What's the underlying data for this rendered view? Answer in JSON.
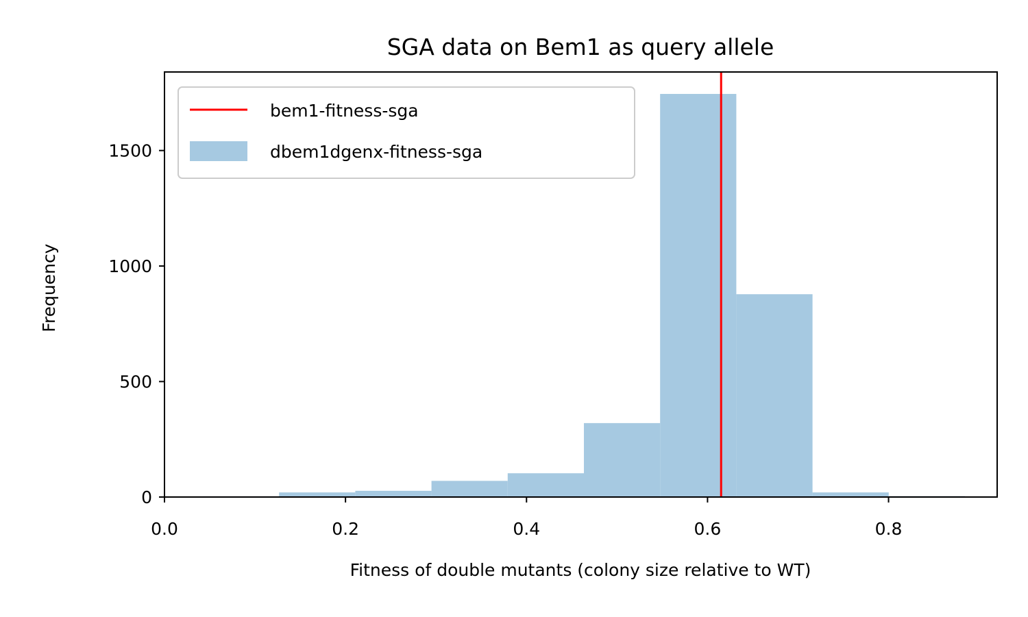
{
  "chart_data": {
    "type": "bar",
    "title": "SGA data on Bem1 as query allele",
    "xlabel": "Fitness of double mutants (colony size relative to WT)",
    "ylabel": "Frequency",
    "xlim": [
      0.0,
      0.92
    ],
    "ylim": [
      0,
      1840
    ],
    "xticks": [
      0.0,
      0.2,
      0.4,
      0.6,
      0.8
    ],
    "xtick_labels": [
      "0.0",
      "0.2",
      "0.4",
      "0.6",
      "0.8"
    ],
    "yticks": [
      0,
      500,
      1000,
      1500
    ],
    "ytick_labels": [
      "0",
      "500",
      "1000",
      "1500"
    ],
    "bin_edges": [
      0.0424,
      0.1266,
      0.2108,
      0.295,
      0.3792,
      0.4634,
      0.5476,
      0.6318,
      0.716,
      0.8002,
      0.8844
    ],
    "values": [
      3,
      20,
      27,
      70,
      103,
      320,
      1745,
      878,
      20,
      4
    ],
    "vline_x": 0.615,
    "grid": false,
    "legend_position": "upper left",
    "legend": [
      {
        "label": "bem1-fitness-sga",
        "kind": "line"
      },
      {
        "label": "dbem1dgenx-fitness-sga",
        "kind": "patch"
      }
    ],
    "colors": {
      "bars": "#a6c9e1",
      "vline": "#ff0000",
      "axes": "#000000",
      "legend_border": "#cccccc"
    }
  }
}
